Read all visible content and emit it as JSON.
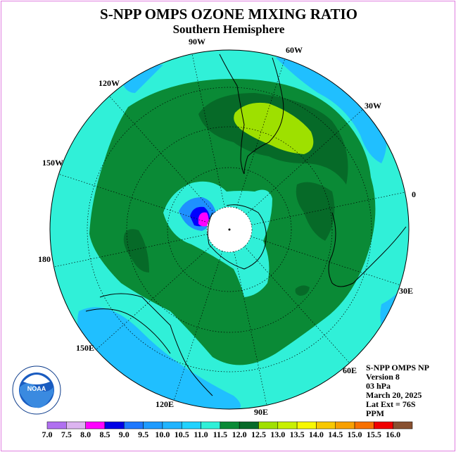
{
  "header": {
    "title": "S-NPP OMPS OZONE MIXING RATIO",
    "subtitle": "Southern Hemisphere"
  },
  "map": {
    "longitude_labels": [
      "90W",
      "60W",
      "120W",
      "30W",
      "150W",
      "0",
      "180",
      "30E",
      "150E",
      "60E",
      "120E",
      "90E"
    ],
    "pole_fill_color": "#ffffff",
    "ocean_background_color": "#30e8d8",
    "max_region_color": "#0a8a36",
    "high_region_color": "#9ee000",
    "low_region_colors": [
      "#20bfff",
      "#1e90ff",
      "#0000ff",
      "#ff00ff"
    ]
  },
  "info_block": {
    "lines": [
      "S-NPP OMPS NP",
      "Version 8",
      "03 hPa",
      "March 20, 2025",
      "Lat Ext = 76S",
      "PPM"
    ]
  },
  "logo": {
    "text": "NOAA",
    "ring_text": "NATIONAL OCEANIC AND ATMOSPHERIC ADMINISTRATION · U.S. DEPARTMENT OF COMMERCE"
  },
  "colorbar": {
    "ticks": [
      "7.0",
      "7.5",
      "8.0",
      "8.5",
      "9.0",
      "9.5",
      "10.0",
      "10.5",
      "11.0",
      "11.5",
      "12.0",
      "12.5",
      "13.0",
      "13.5",
      "14.0",
      "14.5",
      "15.0",
      "15.5",
      "16.0"
    ],
    "colors": [
      "#b070f0",
      "#dcb4f0",
      "#ff00ff",
      "#0000e6",
      "#1e78ff",
      "#1e9bff",
      "#20b4ff",
      "#20d2ff",
      "#30f0d8",
      "#0a8a36",
      "#066a28",
      "#a0e000",
      "#c8f000",
      "#f8f800",
      "#f8c800",
      "#f8a000",
      "#f87000",
      "#f00000",
      "#885030"
    ]
  }
}
